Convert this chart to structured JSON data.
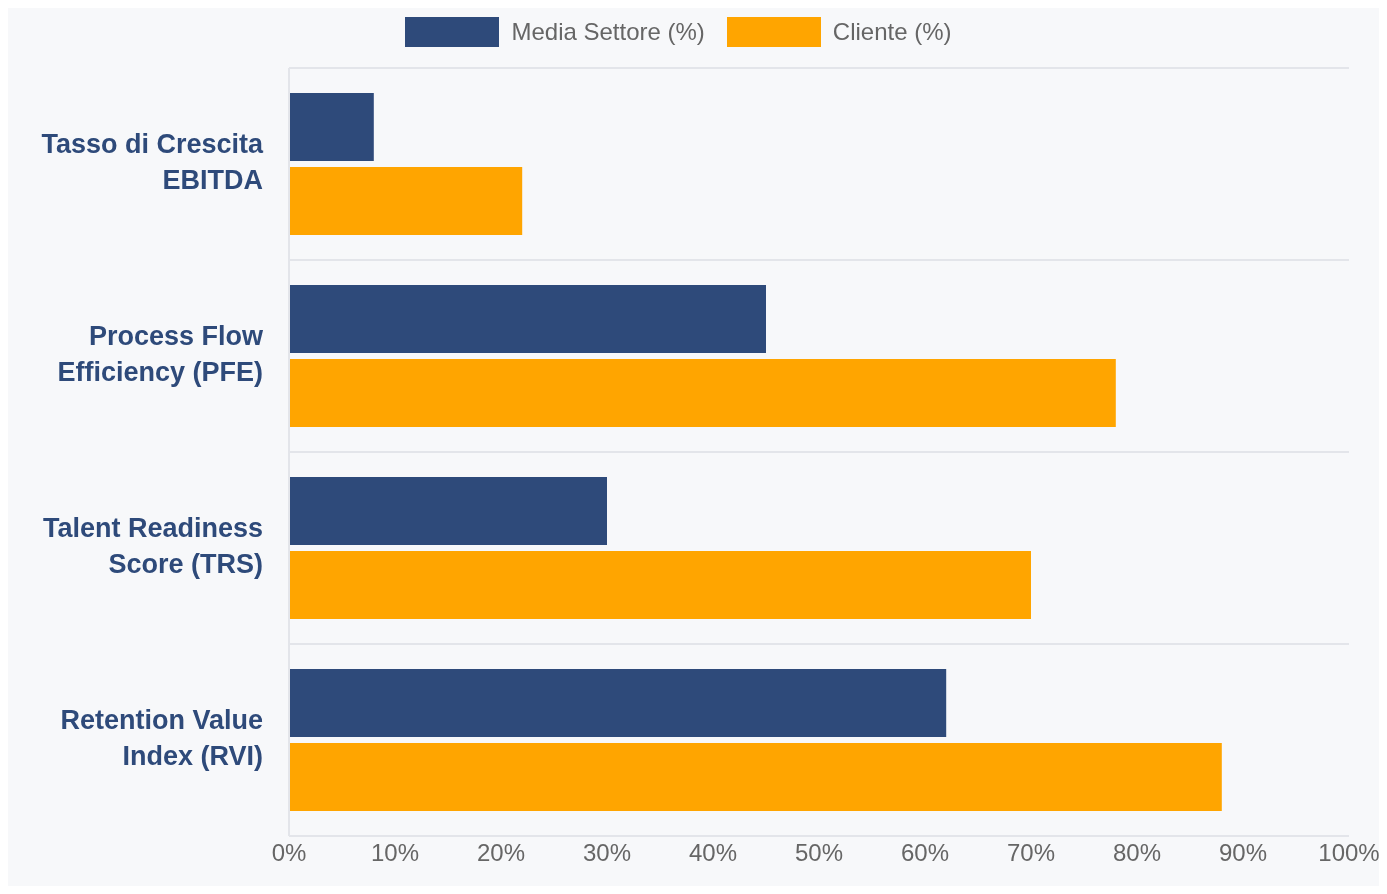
{
  "chart_data": {
    "type": "bar",
    "orientation": "horizontal",
    "categories": [
      "Tasso di Crescita EBITDA",
      "Process Flow Efficiency (PFE)",
      "Talent Readiness Score (TRS)",
      "Retention Value Index (RVI)"
    ],
    "series": [
      {
        "name": "Media Settore (%)",
        "color": "#2e4a7a",
        "values": [
          8,
          45,
          30,
          62
        ]
      },
      {
        "name": "Cliente (%)",
        "color": "#ffa500",
        "values": [
          22,
          78,
          70,
          88
        ]
      }
    ],
    "xlim": [
      0,
      100
    ],
    "xticks": [
      {
        "value": 0,
        "label": "0%"
      },
      {
        "value": 10,
        "label": "10%"
      },
      {
        "value": 20,
        "label": "20%"
      },
      {
        "value": 30,
        "label": "30%"
      },
      {
        "value": 40,
        "label": "40%"
      },
      {
        "value": 50,
        "label": "50%"
      },
      {
        "value": 60,
        "label": "60%"
      },
      {
        "value": 70,
        "label": "70%"
      },
      {
        "value": 80,
        "label": "80%"
      },
      {
        "value": 90,
        "label": "90%"
      },
      {
        "value": 100,
        "label": "100%"
      }
    ],
    "grid": "y",
    "legend": "top"
  }
}
